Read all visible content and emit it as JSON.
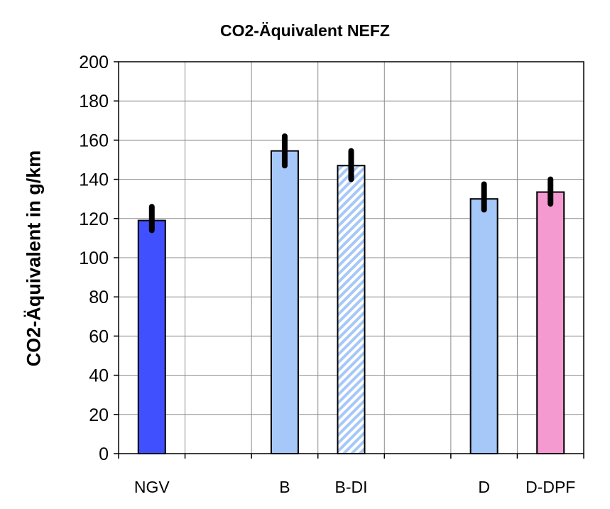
{
  "chart_data": {
    "type": "bar",
    "title": "CO2-Äquivalent NEFZ",
    "xlabel": "",
    "ylabel": "CO2-Äquivalent in g/km",
    "ylim": [
      0,
      200
    ],
    "yticks": [
      0,
      20,
      40,
      60,
      80,
      100,
      120,
      140,
      160,
      180,
      200
    ],
    "grid": true,
    "slots": [
      "NGV",
      "",
      "B",
      "B-DI",
      "",
      "D",
      "D-DPF"
    ],
    "categories": [
      "NGV",
      "B",
      "B-DI",
      "D",
      "D-DPF"
    ],
    "values": [
      119,
      154.5,
      147,
      130,
      133.5
    ],
    "error_low": [
      114,
      147,
      140,
      124.5,
      127.5
    ],
    "error_high": [
      126,
      162,
      154.5,
      137.5,
      140
    ],
    "bar_colors": [
      "#4050ff",
      "#a6c8f8",
      "#a6c8f8",
      "#a6c8f8",
      "#f59ad0"
    ],
    "bar_patterns": [
      "solid",
      "solid",
      "diagonal-hatch",
      "solid",
      "solid"
    ]
  }
}
